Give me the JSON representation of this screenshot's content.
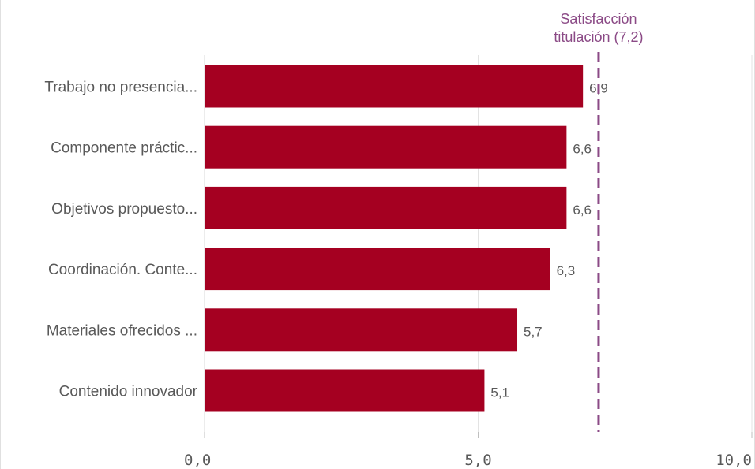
{
  "chart_data": {
    "type": "bar",
    "orientation": "horizontal",
    "categories": [
      "Trabajo no presencia...",
      "Componente práctic...",
      "Objetivos propuesto...",
      "Coordinación. Conte...",
      "Materiales ofrecidos ...",
      "Contenido innovador"
    ],
    "values": [
      6.9,
      6.6,
      6.6,
      6.3,
      5.7,
      5.1
    ],
    "value_labels": [
      "6,9",
      "6,6",
      "6,6",
      "6,3",
      "5,7",
      "5,1"
    ],
    "xlim": [
      0,
      10
    ],
    "ticks": [
      0,
      5,
      10
    ],
    "tick_labels": [
      "0,0",
      "5,0",
      "10,0"
    ],
    "grid": true,
    "bar_color": "#A50021",
    "reference_line": {
      "value": 7.2,
      "label_lines": [
        "Satisfacción",
        "titulación (7,2)"
      ],
      "color": "#8B4A86",
      "style": "dashed"
    }
  }
}
